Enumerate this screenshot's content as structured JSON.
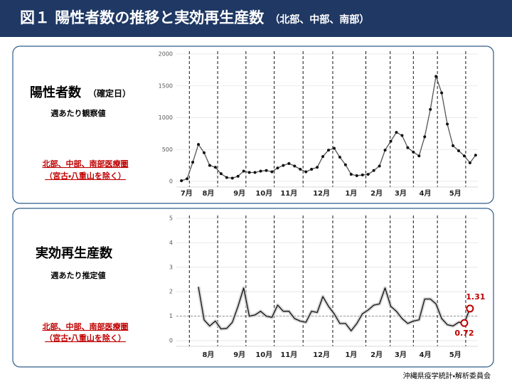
{
  "header": {
    "title": "図１ 陽性者数の推移と実効再生産数",
    "subtitle": "（北部、中部、南部）"
  },
  "footer": "沖縄県疫学統計・解析委員会",
  "chart_data": [
    {
      "type": "line",
      "title": "陽性者数",
      "title_note": "（確定日）",
      "subtitle": "週あたり観察値",
      "note": [
        "北部、中部、南部医療圏",
        "（宮古・八重山を除く）"
      ],
      "x": [
        0,
        1,
        2,
        3,
        4,
        5,
        6,
        7,
        8,
        9,
        10,
        11,
        12,
        13,
        14,
        15,
        16,
        17,
        18,
        19,
        20,
        21,
        22,
        23,
        24,
        25,
        26,
        27,
        28,
        29,
        30,
        31,
        32,
        33,
        34,
        35,
        36,
        37,
        38,
        39,
        40,
        41,
        42,
        43,
        44,
        45,
        46,
        47,
        48,
        49,
        50,
        51,
        52
      ],
      "series": [
        {
          "name": "陽性者数",
          "color": "#555555",
          "marker_color": "#111111",
          "markers": true,
          "values": [
            10,
            40,
            300,
            580,
            450,
            250,
            220,
            120,
            60,
            50,
            80,
            160,
            140,
            140,
            160,
            170,
            150,
            210,
            250,
            280,
            240,
            190,
            150,
            190,
            220,
            390,
            490,
            520,
            380,
            260,
            110,
            90,
            100,
            110,
            170,
            240,
            490,
            630,
            770,
            720,
            530,
            460,
            400,
            700,
            1130,
            1650,
            1390,
            900,
            560,
            480,
            400,
            290,
            410
          ]
        }
      ],
      "xlim": [
        -0.9,
        52.4
      ],
      "xticks": [
        {
          "value": 0.9,
          "label": "7月"
        },
        {
          "value": 4.75,
          "label": "8月"
        },
        {
          "value": 10.25,
          "label": "9月"
        },
        {
          "value": 14.6,
          "label": "10月"
        },
        {
          "value": 19,
          "label": "11月"
        },
        {
          "value": 24.75,
          "label": "12月"
        },
        {
          "value": 30,
          "label": "1月"
        },
        {
          "value": 34.5,
          "label": "2月"
        },
        {
          "value": 38.75,
          "label": "3月"
        },
        {
          "value": 43.1,
          "label": "4月"
        },
        {
          "value": 48.4,
          "label": "5月"
        }
      ],
      "vlines": [
        1.4,
        6.4,
        11.4,
        16.4,
        21.5,
        26.75,
        32.6,
        36.9,
        41,
        45.25,
        50.25
      ],
      "ylim": [
        0,
        2000
      ],
      "yticks": [
        0,
        500,
        1000,
        1500,
        2000
      ],
      "grid": true
    },
    {
      "type": "line",
      "title": "実効再生産数",
      "subtitle": "週あたり推定値",
      "note": [
        "北部、中部、南部医療圏",
        "（宮古・八重山を除く）"
      ],
      "x": [
        3,
        4,
        5,
        6,
        7,
        8,
        9,
        10,
        11,
        12,
        13,
        14,
        15,
        16,
        17,
        18,
        19,
        20,
        21,
        22,
        23,
        24,
        25,
        26,
        27,
        28,
        29,
        30,
        31,
        32,
        33,
        34,
        35,
        36,
        37,
        38,
        39,
        40,
        41,
        42,
        43,
        44,
        45,
        46,
        47,
        48,
        49,
        50,
        51
      ],
      "series": [
        {
          "name": "実効再生産数",
          "color": "#111111",
          "band_color": "#cccccc",
          "markers": false,
          "values": [
            2.2,
            0.85,
            0.6,
            0.8,
            0.48,
            0.5,
            0.75,
            1.4,
            2.15,
            1.0,
            1.05,
            1.2,
            1.0,
            0.95,
            1.45,
            1.2,
            1.2,
            0.9,
            0.8,
            0.75,
            1.2,
            1.15,
            1.8,
            1.4,
            1.1,
            0.7,
            0.7,
            0.4,
            0.7,
            1.1,
            1.25,
            1.45,
            1.5,
            2.15,
            1.4,
            1.2,
            0.9,
            0.7,
            0.8,
            0.85,
            1.7,
            1.7,
            1.5,
            0.9,
            0.65,
            0.6,
            0.75,
            0.72,
            1.31
          ],
          "highlight": [
            47,
            48
          ],
          "highlight_color": "#c00000"
        }
      ],
      "xlim": [
        -0.9,
        52.4
      ],
      "xticks": [
        {
          "value": 4.75,
          "label": "8月"
        },
        {
          "value": 10.25,
          "label": "9月"
        },
        {
          "value": 14.6,
          "label": "10月"
        },
        {
          "value": 19,
          "label": "11月"
        },
        {
          "value": 24.75,
          "label": "12月"
        },
        {
          "value": 30,
          "label": "1月"
        },
        {
          "value": 34.5,
          "label": "2月"
        },
        {
          "value": 38.75,
          "label": "3月"
        },
        {
          "value": 43.1,
          "label": "4月"
        },
        {
          "value": 48.4,
          "label": "5月"
        }
      ],
      "vlines": [
        1.4,
        6.4,
        11.4,
        16.4,
        21.5,
        26.75,
        32.6,
        36.9,
        41,
        45.25,
        50.25
      ],
      "hline": 1,
      "ylim": [
        0,
        5
      ],
      "yticks": [
        0,
        1,
        2,
        3,
        4,
        5
      ],
      "grid": true
    }
  ]
}
